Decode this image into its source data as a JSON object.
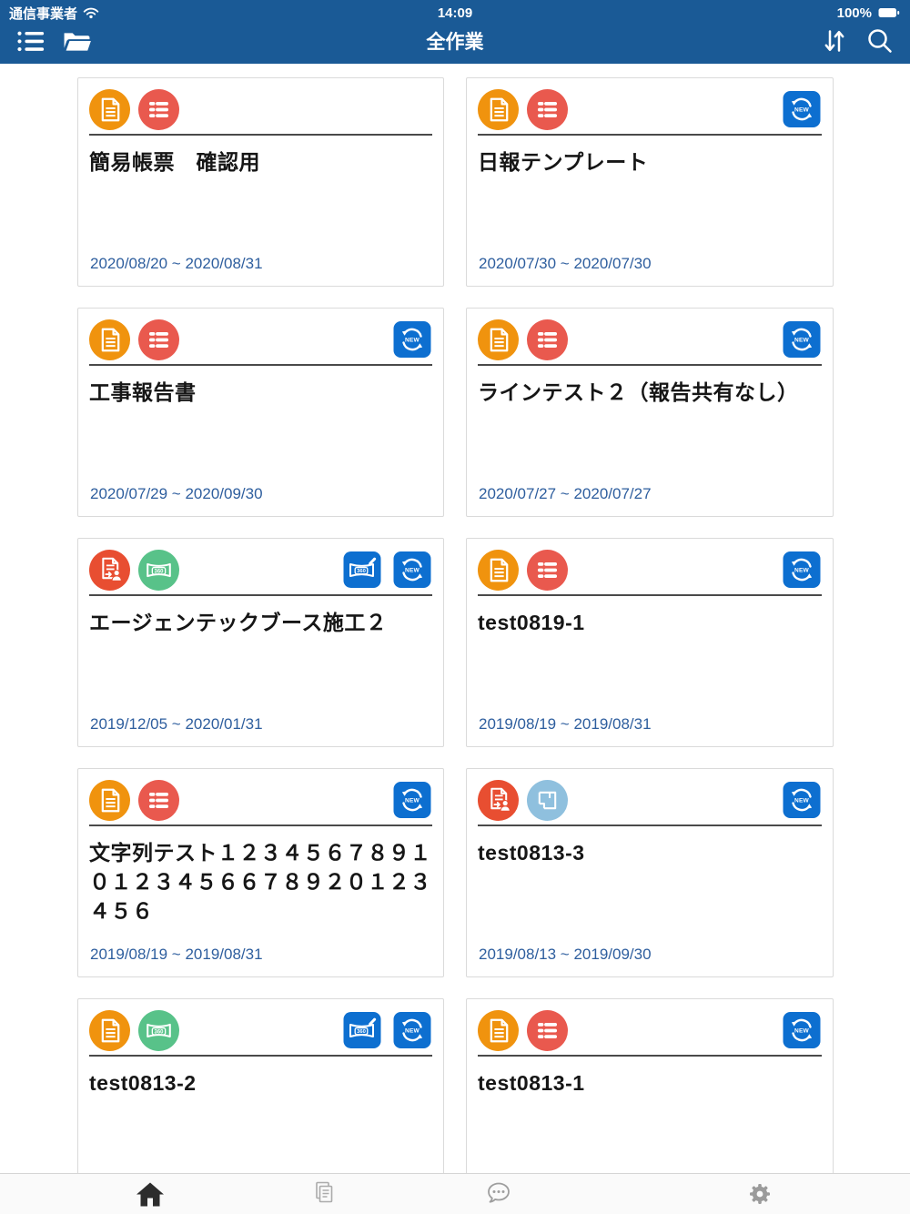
{
  "status_bar": {
    "carrier": "通信事業者",
    "time": "14:09",
    "battery_percent": "100%"
  },
  "nav": {
    "title": "全作業"
  },
  "badge_labels": {
    "new_sync": "NEW",
    "pano_360": "360"
  },
  "cards": [
    {
      "title": "簡易帳票　確認用",
      "date_range": "2020/08/20 ~ 2020/08/31",
      "icons": [
        "document-orange",
        "checklist-red"
      ],
      "badges": []
    },
    {
      "title": "日報テンプレート",
      "date_range": "2020/07/30 ~ 2020/07/30",
      "icons": [
        "document-orange",
        "checklist-red"
      ],
      "badges": [
        "new-sync"
      ]
    },
    {
      "title": "工事報告書",
      "date_range": "2020/07/29 ~ 2020/09/30",
      "icons": [
        "document-orange",
        "checklist-red"
      ],
      "badges": [
        "new-sync"
      ]
    },
    {
      "title": "ラインテスト２（報告共有なし）",
      "date_range": "2020/07/27 ~ 2020/07/27",
      "icons": [
        "document-orange",
        "checklist-red"
      ],
      "badges": [
        "new-sync"
      ]
    },
    {
      "title": "エージェンテックブース施工２",
      "date_range": "2019/12/05 ~ 2020/01/31",
      "icons": [
        "report-share-red",
        "pano-360-green"
      ],
      "badges": [
        "360-edit",
        "new-sync"
      ]
    },
    {
      "title": "test0819-1",
      "date_range": "2019/08/19 ~ 2019/08/31",
      "icons": [
        "document-orange",
        "checklist-red"
      ],
      "badges": [
        "new-sync"
      ]
    },
    {
      "title": "文字列テスト１２３４５６７８９１０１２３４５６６７８９２０１２３４５６",
      "date_range": "2019/08/19 ~ 2019/08/31",
      "icons": [
        "document-orange",
        "checklist-red"
      ],
      "badges": [
        "new-sync"
      ]
    },
    {
      "title": "test0813-3",
      "date_range": "2019/08/13 ~ 2019/09/30",
      "icons": [
        "report-share-red",
        "drawing-blue"
      ],
      "badges": [
        "new-sync"
      ]
    },
    {
      "title": "test0813-2",
      "date_range": "",
      "icons": [
        "document-orange",
        "pano-360-green"
      ],
      "badges": [
        "360-edit",
        "new-sync"
      ]
    },
    {
      "title": "test0813-1",
      "date_range": "",
      "icons": [
        "document-orange",
        "checklist-red"
      ],
      "badges": [
        "new-sync"
      ]
    }
  ],
  "tab_bar": {
    "tabs": [
      "home",
      "reports",
      "chat",
      "settings"
    ],
    "active_tab": "home"
  },
  "colors": {
    "nav_blue": "#1A5A96",
    "badge_blue": "#0D6FD0",
    "icon_orange": "#F0930E",
    "icon_red": "#E9594E",
    "icon_red_orange": "#E84E31",
    "icon_green": "#58C289",
    "icon_light_blue": "#8FC0DE",
    "date_blue": "#2E5E9E"
  }
}
